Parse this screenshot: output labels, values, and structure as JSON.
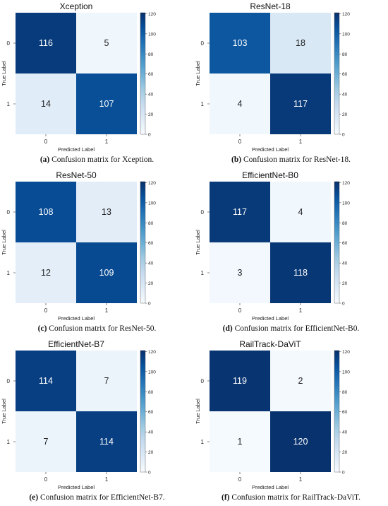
{
  "chart_data": [
    {
      "type": "heatmap",
      "title": "Xception",
      "xlabel": "Predicted Label",
      "ylabel": "True Label",
      "x_tick_labels": [
        "0",
        "1"
      ],
      "y_tick_labels": [
        "0",
        "1"
      ],
      "matrix": [
        [
          116,
          5
        ],
        [
          14,
          107
        ]
      ],
      "colorbar_ticks": [
        0,
        20,
        40,
        60,
        80,
        100,
        120
      ],
      "vmin": 0,
      "vmax": 121,
      "caption_label": "(a)",
      "caption_text": " Confusion matrix for Xception."
    },
    {
      "type": "heatmap",
      "title": "ResNet-18",
      "xlabel": "Predicted Label",
      "ylabel": "True Label",
      "x_tick_labels": [
        "0",
        "1"
      ],
      "y_tick_labels": [
        "0",
        "1"
      ],
      "matrix": [
        [
          103,
          18
        ],
        [
          4,
          117
        ]
      ],
      "colorbar_ticks": [
        0,
        20,
        40,
        60,
        80,
        100,
        120
      ],
      "vmin": 0,
      "vmax": 121,
      "caption_label": "(b)",
      "caption_text": " Confusion matrix for ResNet-18."
    },
    {
      "type": "heatmap",
      "title": "ResNet-50",
      "xlabel": "Predicted Label",
      "ylabel": "True Label",
      "x_tick_labels": [
        "0",
        "1"
      ],
      "y_tick_labels": [
        "0",
        "1"
      ],
      "matrix": [
        [
          108,
          13
        ],
        [
          12,
          109
        ]
      ],
      "colorbar_ticks": [
        0,
        20,
        40,
        60,
        80,
        100,
        120
      ],
      "vmin": 0,
      "vmax": 121,
      "caption_label": "(c)",
      "caption_text": " Confusion matrix for ResNet-50."
    },
    {
      "type": "heatmap",
      "title": "EfficientNet-B0",
      "xlabel": "Predicted Label",
      "ylabel": "True Label",
      "x_tick_labels": [
        "0",
        "1"
      ],
      "y_tick_labels": [
        "0",
        "1"
      ],
      "matrix": [
        [
          117,
          4
        ],
        [
          3,
          118
        ]
      ],
      "colorbar_ticks": [
        0,
        20,
        40,
        60,
        80,
        100,
        120
      ],
      "vmin": 0,
      "vmax": 121,
      "caption_label": "(d)",
      "caption_text": " Confusion matrix for EfficientNet-B0."
    },
    {
      "type": "heatmap",
      "title": "EfficientNet-B7",
      "xlabel": "Predicted Label",
      "ylabel": "True Label",
      "x_tick_labels": [
        "0",
        "1"
      ],
      "y_tick_labels": [
        "0",
        "1"
      ],
      "matrix": [
        [
          114,
          7
        ],
        [
          7,
          114
        ]
      ],
      "colorbar_ticks": [
        0,
        20,
        40,
        60,
        80,
        100,
        120
      ],
      "vmin": 0,
      "vmax": 121,
      "caption_label": "(e)",
      "caption_text": " Confusion matrix for EfficientNet-B7."
    },
    {
      "type": "heatmap",
      "title": "RailTrack-DaViT",
      "xlabel": "Predicted Label",
      "ylabel": "True Label",
      "x_tick_labels": [
        "0",
        "1"
      ],
      "y_tick_labels": [
        "0",
        "1"
      ],
      "matrix": [
        [
          119,
          2
        ],
        [
          1,
          120
        ]
      ],
      "colorbar_ticks": [
        0,
        20,
        40,
        60,
        80,
        100,
        120
      ],
      "vmin": 0,
      "vmax": 121,
      "caption_label": "(f)",
      "caption_text": " Confusion matrix for RailTrack-DaViT."
    }
  ],
  "colormap": {
    "name": "Blues",
    "stops": [
      "#f7fbff",
      "#deebf7",
      "#c6dbef",
      "#9ecae1",
      "#6baed6",
      "#4292c6",
      "#2171b5",
      "#08519c",
      "#08306b"
    ]
  }
}
